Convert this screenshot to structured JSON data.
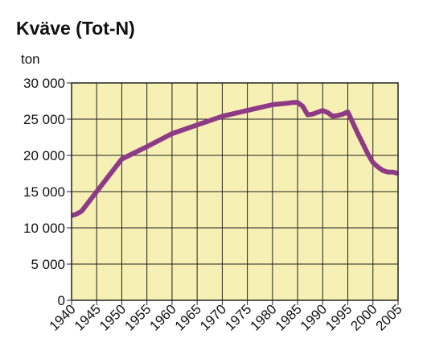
{
  "chart_data": {
    "type": "line",
    "title": "Kväve (Tot-N)",
    "unit": "ton",
    "xlim": [
      1940,
      2005
    ],
    "ylim": [
      0,
      30000
    ],
    "grid": true,
    "legend": "none",
    "colors": {
      "plot_background": "#f7f0b4",
      "line": "#8e3a87",
      "grid": "#222222"
    },
    "x_ticks": [
      1940,
      1945,
      1950,
      1955,
      1960,
      1965,
      1970,
      1975,
      1980,
      1985,
      1990,
      1995,
      2000,
      2005
    ],
    "x_tick_labels": [
      "1940",
      "1945",
      "1950",
      "1955",
      "1960",
      "1965",
      "1970",
      "1975",
      "1980",
      "1985",
      "1990",
      "1995",
      "2000",
      "2005"
    ],
    "y_ticks": [
      0,
      5000,
      10000,
      15000,
      20000,
      25000,
      30000
    ],
    "y_tick_labels": [
      "0",
      "5 000",
      "10 000",
      "15 000",
      "20 000",
      "25 000",
      "30 000"
    ],
    "series": [
      {
        "x": [
          1940,
          1941,
          1942,
          1945,
          1950,
          1955,
          1960,
          1965,
          1970,
          1975,
          1980,
          1983,
          1984,
          1985,
          1986,
          1987,
          1988,
          1990,
          1991,
          1992,
          1993,
          1994,
          1995,
          1997,
          1999,
          2000,
          2001,
          2002,
          2003,
          2004,
          2005
        ],
        "values": [
          11700,
          11900,
          12300,
          15000,
          19500,
          21200,
          23000,
          24200,
          25400,
          26200,
          27000,
          27200,
          27300,
          27300,
          26800,
          25600,
          25700,
          26200,
          25900,
          25400,
          25500,
          25700,
          26000,
          23000,
          20200,
          19000,
          18400,
          17900,
          17700,
          17700,
          17500
        ]
      }
    ]
  }
}
